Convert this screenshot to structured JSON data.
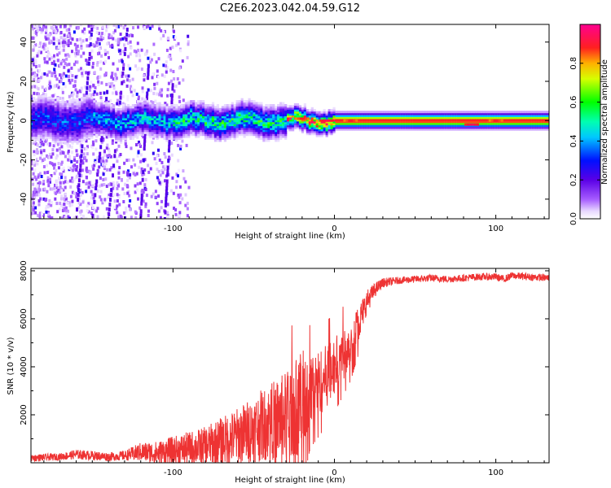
{
  "figure_title": "C2E6.2023.042.04.59.G12",
  "colors": {
    "snr_line": "#ee3333",
    "axis": "#000000",
    "background": "#ffffff"
  },
  "chart_data": [
    {
      "type": "heatmap",
      "title": "",
      "xlabel": "Height of straight line (km)",
      "ylabel": "Frequency (Hz)",
      "xlim": [
        -188,
        133
      ],
      "ylim": [
        -50,
        49
      ],
      "x_ticks": [
        -100,
        0,
        100
      ],
      "y_ticks": [
        -40,
        -20,
        0,
        20,
        40
      ],
      "colorbar": {
        "label": "Normalized spectral amplitude",
        "range": [
          0.0,
          1.0
        ],
        "ticks": [
          0.0,
          0.2,
          0.4,
          0.6,
          0.8
        ],
        "colormap": "rainbow (purple → blue → cyan → green → yellow → red → magenta)"
      },
      "ridge": {
        "center_freq_hz": 0,
        "segments": [
          {
            "x_start": -188,
            "x_end": -150,
            "half_width_hz": 8,
            "peak_amplitude": 0.35
          },
          {
            "x_start": -150,
            "x_end": -100,
            "half_width_hz": 6,
            "peak_amplitude": 0.45
          },
          {
            "x_start": -100,
            "x_end": -30,
            "half_width_hz": 6,
            "peak_amplitude": 0.55
          },
          {
            "x_start": -30,
            "x_end": 0,
            "half_width_hz": 4,
            "peak_amplitude": 0.85
          },
          {
            "x_start": 0,
            "x_end": 133,
            "half_width_hz": 3,
            "peak_amplitude": 0.9
          }
        ],
        "hot_spots": [
          {
            "x": -20,
            "freq_hz": 1,
            "amplitude": 0.9
          },
          {
            "x": -5,
            "freq_hz": 0,
            "amplitude": 0.95
          },
          {
            "x": 10,
            "freq_hz": 0,
            "amplitude": 0.9
          },
          {
            "x": 85,
            "freq_hz": -2,
            "amplitude": 0.95
          },
          {
            "x": 100,
            "freq_hz": 0,
            "amplitude": 0.9
          }
        ]
      },
      "noise_region": {
        "x_start": -188,
        "x_end": -90,
        "freq_range_hz": [
          -50,
          49
        ],
        "amplitude": 0.15
      }
    },
    {
      "type": "line",
      "title": "",
      "xlabel": "Height of straight line (km)",
      "ylabel": "SNR (10 * v/v)",
      "xlim": [
        -188,
        133
      ],
      "ylim": [
        0,
        8100
      ],
      "x_ticks": [
        -100,
        0,
        100
      ],
      "y_ticks": [
        2000,
        4000,
        6000,
        8000
      ],
      "series": [
        {
          "name": "SNR",
          "x": [
            -188,
            -170,
            -160,
            -150,
            -140,
            -130,
            -120,
            -110,
            -100,
            -90,
            -80,
            -70,
            -60,
            -50,
            -40,
            -30,
            -25,
            -20,
            -15,
            -10,
            -5,
            0,
            5,
            10,
            15,
            20,
            25,
            30,
            40,
            50,
            60,
            70,
            80,
            90,
            100,
            105,
            110,
            120,
            133
          ],
          "values": [
            200,
            250,
            350,
            300,
            250,
            300,
            450,
            400,
            500,
            600,
            700,
            900,
            1100,
            1400,
            1700,
            2000,
            2300,
            2500,
            3000,
            3300,
            3600,
            4000,
            4500,
            5000,
            5800,
            6700,
            7200,
            7500,
            7600,
            7650,
            7700,
            7650,
            7700,
            7750,
            7750,
            7650,
            7800,
            7750,
            7700
          ],
          "noise_amplitude": [
            150,
            150,
            200,
            200,
            180,
            200,
            400,
            500,
            600,
            700,
            800,
            1000,
            1200,
            1400,
            1600,
            1800,
            2000,
            2200,
            1500,
            1400,
            1300,
            1200,
            1100,
            1000,
            800,
            500,
            300,
            200,
            150,
            150,
            150,
            150,
            150,
            150,
            150,
            150,
            150,
            150,
            150
          ]
        }
      ]
    }
  ]
}
